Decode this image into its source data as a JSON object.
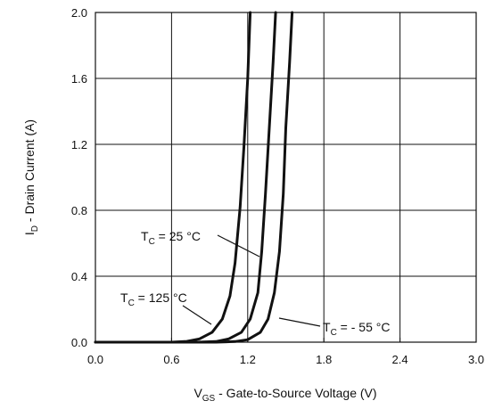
{
  "chart_data": {
    "type": "line",
    "title": "",
    "xlabel": {
      "prefix": "V",
      "sub": "GS",
      "rest": " - Gate-to-Source Voltage (V)"
    },
    "ylabel": {
      "prefix": "I",
      "sub": "D",
      "rest": " - Drain Current (A)"
    },
    "xlim": [
      0.0,
      3.0
    ],
    "ylim": [
      0.0,
      2.0
    ],
    "x_ticks": [
      "0.0",
      "0.6",
      "1.2",
      "1.8",
      "2.4",
      "3.0"
    ],
    "y_ticks": [
      "0.0",
      "0.4",
      "0.8",
      "1.2",
      "1.6",
      "2.0"
    ],
    "grid": true,
    "line_color": "#111111",
    "series": [
      {
        "name": "TC = 125 °C",
        "points": [
          [
            0.0,
            0.0
          ],
          [
            0.6,
            0.0
          ],
          [
            0.72,
            0.005
          ],
          [
            0.82,
            0.02
          ],
          [
            0.92,
            0.06
          ],
          [
            1.0,
            0.14
          ],
          [
            1.06,
            0.28
          ],
          [
            1.1,
            0.48
          ],
          [
            1.14,
            0.82
          ],
          [
            1.17,
            1.18
          ],
          [
            1.2,
            1.6
          ],
          [
            1.22,
            2.0
          ]
        ]
      },
      {
        "name": "TC = 25 °C",
        "points": [
          [
            0.0,
            0.0
          ],
          [
            0.8,
            0.0
          ],
          [
            0.95,
            0.004
          ],
          [
            1.05,
            0.02
          ],
          [
            1.15,
            0.06
          ],
          [
            1.22,
            0.14
          ],
          [
            1.28,
            0.3
          ],
          [
            1.31,
            0.55
          ],
          [
            1.34,
            0.9
          ],
          [
            1.37,
            1.3
          ],
          [
            1.4,
            1.7
          ],
          [
            1.42,
            2.0
          ]
        ]
      },
      {
        "name": "TC = - 55 °C",
        "points": [
          [
            0.0,
            0.0
          ],
          [
            0.95,
            0.0
          ],
          [
            1.1,
            0.004
          ],
          [
            1.2,
            0.015
          ],
          [
            1.3,
            0.06
          ],
          [
            1.36,
            0.14
          ],
          [
            1.41,
            0.3
          ],
          [
            1.45,
            0.55
          ],
          [
            1.48,
            0.9
          ],
          [
            1.5,
            1.3
          ],
          [
            1.53,
            1.7
          ],
          [
            1.55,
            2.0
          ]
        ]
      }
    ],
    "annotations": [
      {
        "prefix": "T",
        "sub": "C",
        "rest": " = 25 °C",
        "target": [
          1.31,
          0.52
        ]
      },
      {
        "prefix": "T",
        "sub": "C",
        "rest": " = 125 °C",
        "target": [
          0.95,
          0.11
        ]
      },
      {
        "prefix": "T",
        "sub": "C",
        "rest": " = - 55 °C",
        "target": [
          1.45,
          0.15
        ]
      }
    ]
  }
}
